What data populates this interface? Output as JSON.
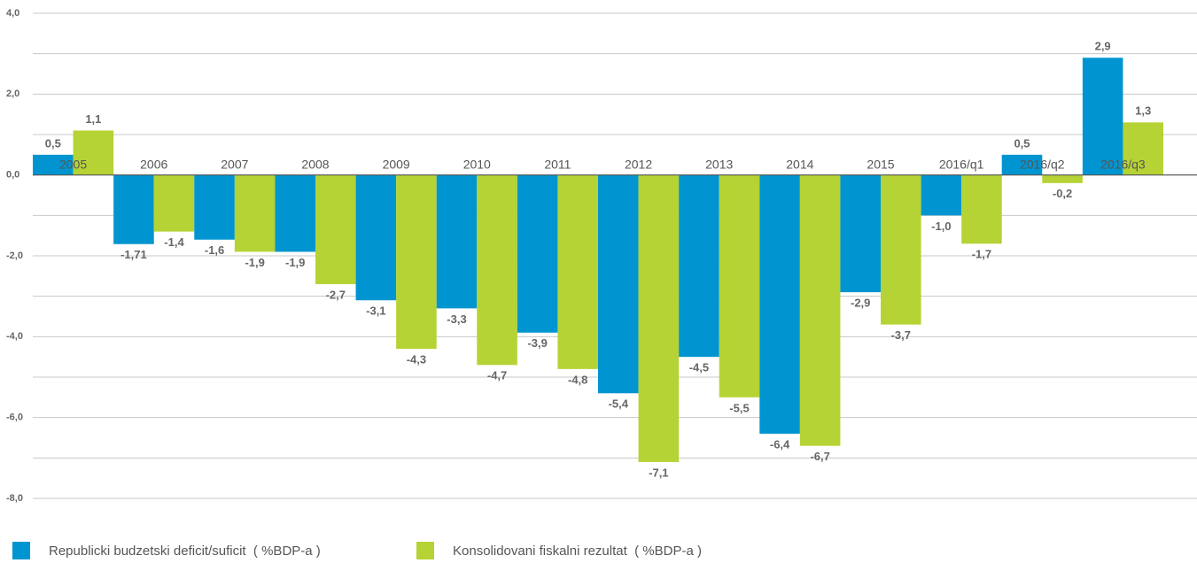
{
  "chart_data": {
    "type": "bar",
    "categories": [
      "2005",
      "2006",
      "2007",
      "2008",
      "2009",
      "2010",
      "2011",
      "2012",
      "2013",
      "2014",
      "2015",
      "2016/q1",
      "2016/q2",
      "2016/q3"
    ],
    "series": [
      {
        "name": "Republicki budzetski deficit/suficit  ( %BDP-a )",
        "color": "#0095d0",
        "values": [
          0.5,
          -1.71,
          -1.6,
          -1.9,
          -3.1,
          -3.3,
          -3.9,
          -5.4,
          -4.5,
          -6.4,
          -2.9,
          -1.0,
          0.5,
          2.9
        ],
        "value_labels": [
          "0,5",
          "-1,71",
          "-1,6",
          "-1,9",
          "-3,1",
          "-3,3",
          "-3,9",
          "-5,4",
          "-4,5",
          "-6,4",
          "-2,9",
          "-1,0",
          "0,5",
          "2,9"
        ]
      },
      {
        "name": "Konsolidovani fiskalni rezultat  ( %BDP-a )",
        "color": "#b5d334",
        "values": [
          1.1,
          -1.4,
          -1.9,
          -2.7,
          -4.3,
          -4.7,
          -4.8,
          -7.1,
          -5.5,
          -6.7,
          -3.7,
          -1.7,
          -0.2,
          1.3
        ],
        "value_labels": [
          "1,1",
          "-1,4",
          "-1,9",
          "-2,7",
          "-4,3",
          "-4,7",
          "-4,8",
          "-7,1",
          "-5,5",
          "-6,7",
          "-3,7",
          "-1,7",
          "-0,2",
          "1,3"
        ]
      }
    ],
    "ylim": [
      -8,
      4
    ],
    "yticks": [
      {
        "value": 4,
        "label": "4,0"
      },
      {
        "value": 2,
        "label": "2,0"
      },
      {
        "value": 0,
        "label": "0,0"
      },
      {
        "value": -2,
        "label": "-2,0"
      },
      {
        "value": -4,
        "label": "-4,0"
      },
      {
        "value": -6,
        "label": "-6,0"
      },
      {
        "value": -8,
        "label": "-8,0"
      }
    ],
    "minor_yticks": [
      3,
      1,
      -1,
      -3,
      -5,
      -7
    ],
    "grid": true,
    "legend": "bottom"
  }
}
